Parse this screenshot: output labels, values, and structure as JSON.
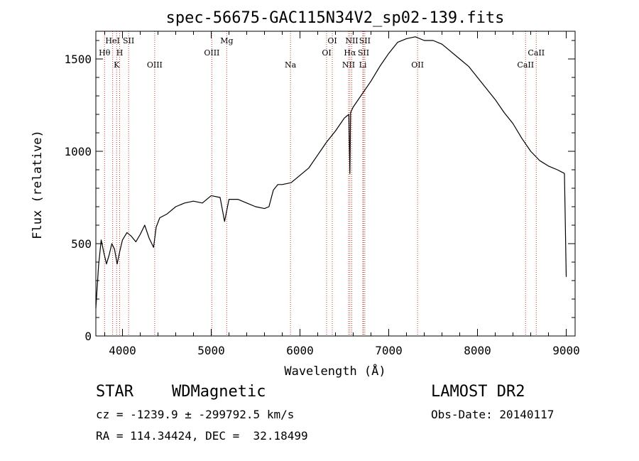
{
  "chart_data": {
    "type": "line",
    "title": "spec-56675-GAC115N34V2_sp02-139.fits",
    "xlabel": "Wavelength (Å)",
    "ylabel": "Flux (relative)",
    "xlim": [
      3700,
      9100
    ],
    "ylim": [
      0,
      1650
    ],
    "x_ticks": [
      4000,
      5000,
      6000,
      7000,
      8000,
      9000
    ],
    "y_ticks": [
      0,
      500,
      1000,
      1500
    ],
    "grid": false,
    "series": [
      {
        "x": [
          3700,
          3730,
          3760,
          3790,
          3820,
          3850,
          3880,
          3910,
          3940,
          3970,
          4000,
          4050,
          4100,
          4150,
          4200,
          4250,
          4300,
          4350,
          4380,
          4420,
          4500,
          4600,
          4700,
          4800,
          4900,
          5000,
          5100,
          5150,
          5200,
          5300,
          5400,
          5500,
          5600,
          5650,
          5700,
          5750,
          5800,
          5900,
          6000,
          6100,
          6200,
          6300,
          6400,
          6500,
          6550,
          6562,
          6570,
          6600,
          6700,
          6800,
          6900,
          7000,
          7100,
          7200,
          7300,
          7400,
          7500,
          7600,
          7700,
          7800,
          7900,
          8000,
          8100,
          8200,
          8300,
          8400,
          8500,
          8600,
          8700,
          8800,
          8900,
          8980,
          9000
        ],
        "y": [
          150,
          380,
          520,
          450,
          390,
          440,
          500,
          470,
          390,
          460,
          520,
          560,
          540,
          510,
          550,
          600,
          530,
          480,
          590,
          640,
          660,
          700,
          720,
          730,
          720,
          760,
          750,
          620,
          740,
          740,
          720,
          700,
          690,
          700,
          790,
          820,
          820,
          830,
          870,
          910,
          980,
          1050,
          1110,
          1180,
          1200,
          880,
          1210,
          1240,
          1310,
          1380,
          1460,
          1530,
          1590,
          1610,
          1620,
          1600,
          1600,
          1580,
          1540,
          1500,
          1460,
          1400,
          1340,
          1280,
          1210,
          1150,
          1070,
          1000,
          950,
          920,
          900,
          880,
          320
        ]
      }
    ],
    "spectral_lines": [
      {
        "label": "Hθ",
        "x": 3798,
        "row": 2
      },
      {
        "label": "HeI",
        "x": 3889,
        "row": 1
      },
      {
        "label": "K",
        "x": 3934,
        "row": 3
      },
      {
        "label": "H",
        "x": 3968,
        "row": 2
      },
      {
        "label": "SII",
        "x": 4069,
        "row": 1
      },
      {
        "label": "OIII",
        "x": 4363,
        "row": 3
      },
      {
        "label": "OIII",
        "x": 5007,
        "row": 2
      },
      {
        "label": "Mg",
        "x": 5175,
        "row": 1
      },
      {
        "label": "Na",
        "x": 5893,
        "row": 3
      },
      {
        "label": "OI",
        "x": 6300,
        "row": 2
      },
      {
        "label": "OI",
        "x": 6364,
        "row": 1
      },
      {
        "label": "NII",
        "x": 6548,
        "row": 3
      },
      {
        "label": "Hα",
        "x": 6563,
        "row": 2
      },
      {
        "label": "NII",
        "x": 6584,
        "row": 1
      },
      {
        "label": "SII",
        "x": 6716,
        "row": 2
      },
      {
        "label": "SII",
        "x": 6731,
        "row": 1
      },
      {
        "label": "Li",
        "x": 6708,
        "row": 3
      },
      {
        "label": "OII",
        "x": 7325,
        "row": 3
      },
      {
        "label": "CaII",
        "x": 8542,
        "row": 3
      },
      {
        "label": "CaII",
        "x": 8662,
        "row": 2
      }
    ],
    "line_color": "#000000",
    "marker_color": "#c0392b"
  },
  "info": {
    "class_label": "STAR",
    "subclass_label": "WDMagnetic",
    "survey_label": "LAMOST DR2",
    "cz_text": "cz = -1239.9 ± -299792.5 km/s",
    "obs_date_text": "Obs-Date: 20140117",
    "coords_text": "RA = 114.34424, DEC =  32.18499"
  }
}
